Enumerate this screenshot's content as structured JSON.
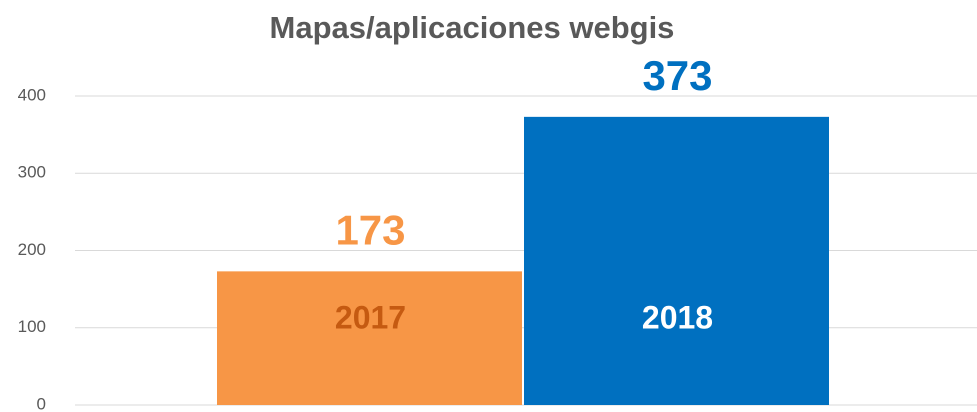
{
  "chart_data": {
    "type": "bar",
    "title": "Mapas/aplicaciones webgis",
    "categories": [
      "2017",
      "2018"
    ],
    "values": [
      173,
      373
    ],
    "colors": [
      "#f79646",
      "#0070c0"
    ],
    "ylim": [
      0,
      400
    ],
    "yticks": [
      0,
      100,
      200,
      300,
      400
    ],
    "grid": true
  }
}
